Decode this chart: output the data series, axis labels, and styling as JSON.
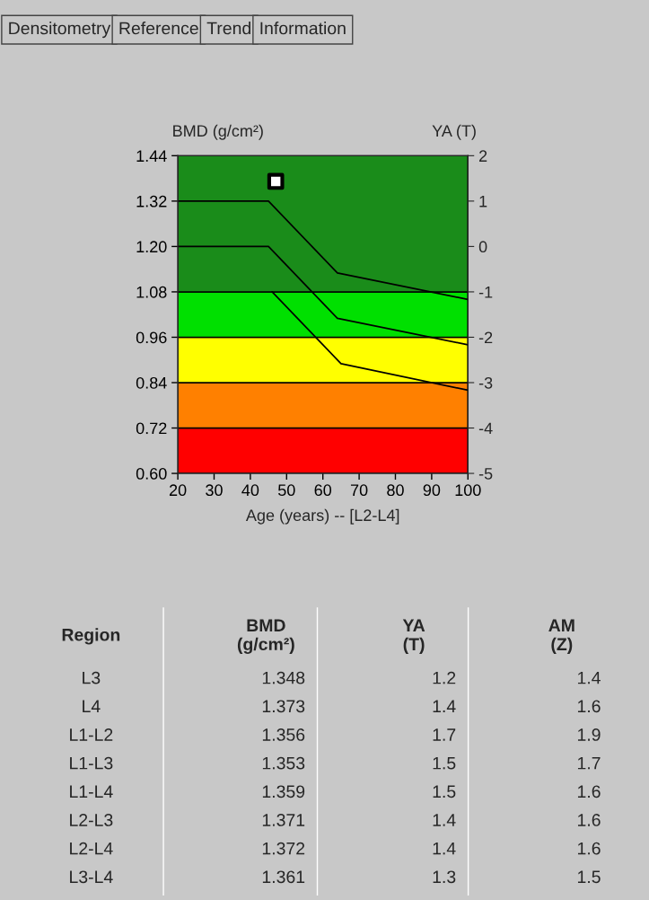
{
  "chart_data": [
    {
      "type": "line",
      "xlabel": "Age (years) -- [L2-L4]",
      "ylabel": "BMD (g/cm²)",
      "y2label": "YA (T)",
      "annotations": [
        "Densitometry",
        "Reference",
        "Trend",
        "Information"
      ],
      "xlim": [
        20,
        100
      ],
      "xticks": [
        20,
        30,
        40,
        50,
        60,
        70,
        80,
        90,
        100
      ],
      "ylim": [
        0.6,
        1.44
      ],
      "yticks": [
        {
          "value": 0.6,
          "label": "0.60"
        },
        {
          "value": 0.72,
          "label": "0.72"
        },
        {
          "value": 0.84,
          "label": "0.84"
        },
        {
          "value": 0.96,
          "label": "0.96"
        },
        {
          "value": 1.08,
          "label": "1.08"
        },
        {
          "value": 1.2,
          "label": "1.20"
        },
        {
          "value": 1.32,
          "label": "1.32"
        },
        {
          "value": 1.44,
          "label": "1.44"
        }
      ],
      "y2lim": [
        -5,
        2
      ],
      "y2ticks": [
        2,
        1,
        0,
        -1,
        -2,
        -3,
        -4,
        -5
      ],
      "bands": [
        {
          "axis": "y",
          "from": 0.6,
          "to": 0.72,
          "color": "#ff0000"
        },
        {
          "axis": "y",
          "from": 0.72,
          "to": 0.84,
          "color": "#ff8000"
        },
        {
          "axis": "y",
          "from": 0.84,
          "to": 0.96,
          "color": "#ffff00"
        },
        {
          "axis": "y",
          "from": 0.96,
          "to": 1.08,
          "color": "#00e000"
        },
        {
          "axis": "y",
          "from": 1.08,
          "to": 1.44,
          "color": "#1a8c1a"
        }
      ],
      "series": [
        {
          "type": "line",
          "color": "#000000",
          "x": [
            20,
            45,
            64,
            100
          ],
          "values": [
            1.32,
            1.32,
            1.13,
            1.06
          ]
        },
        {
          "type": "line",
          "color": "#000000",
          "x": [
            20,
            45,
            64,
            100
          ],
          "values": [
            1.2,
            1.2,
            1.01,
            0.94
          ]
        },
        {
          "type": "line",
          "color": "#000000",
          "x": [
            46,
            65,
            100
          ],
          "values": [
            1.08,
            0.89,
            0.82
          ]
        },
        {
          "type": "scatter",
          "color": "#000000",
          "marker": "square",
          "x": [
            47
          ],
          "values": [
            1.372
          ]
        }
      ],
      "legend": false
    },
    {
      "type": "other",
      "annotations": [
        "Region",
        "BMD\n(g/cm²)",
        "YA\n(T)",
        "AM\n(Z)",
        "L3",
        "1.348",
        "1.2",
        "1.4",
        "L4",
        "1.373",
        "1.4",
        "1.6",
        "L1-L2",
        "1.356",
        "1.7",
        "1.9",
        "L1-L3",
        "1.353",
        "1.5",
        "1.7",
        "L1-L4",
        "1.359",
        "1.5",
        "1.6",
        "L2-L3",
        "1.371",
        "1.4",
        "1.6",
        "L2-L4",
        "1.372",
        "1.4",
        "1.6",
        "L3-L4",
        "1.361",
        "1.3",
        "1.5"
      ]
    }
  ]
}
